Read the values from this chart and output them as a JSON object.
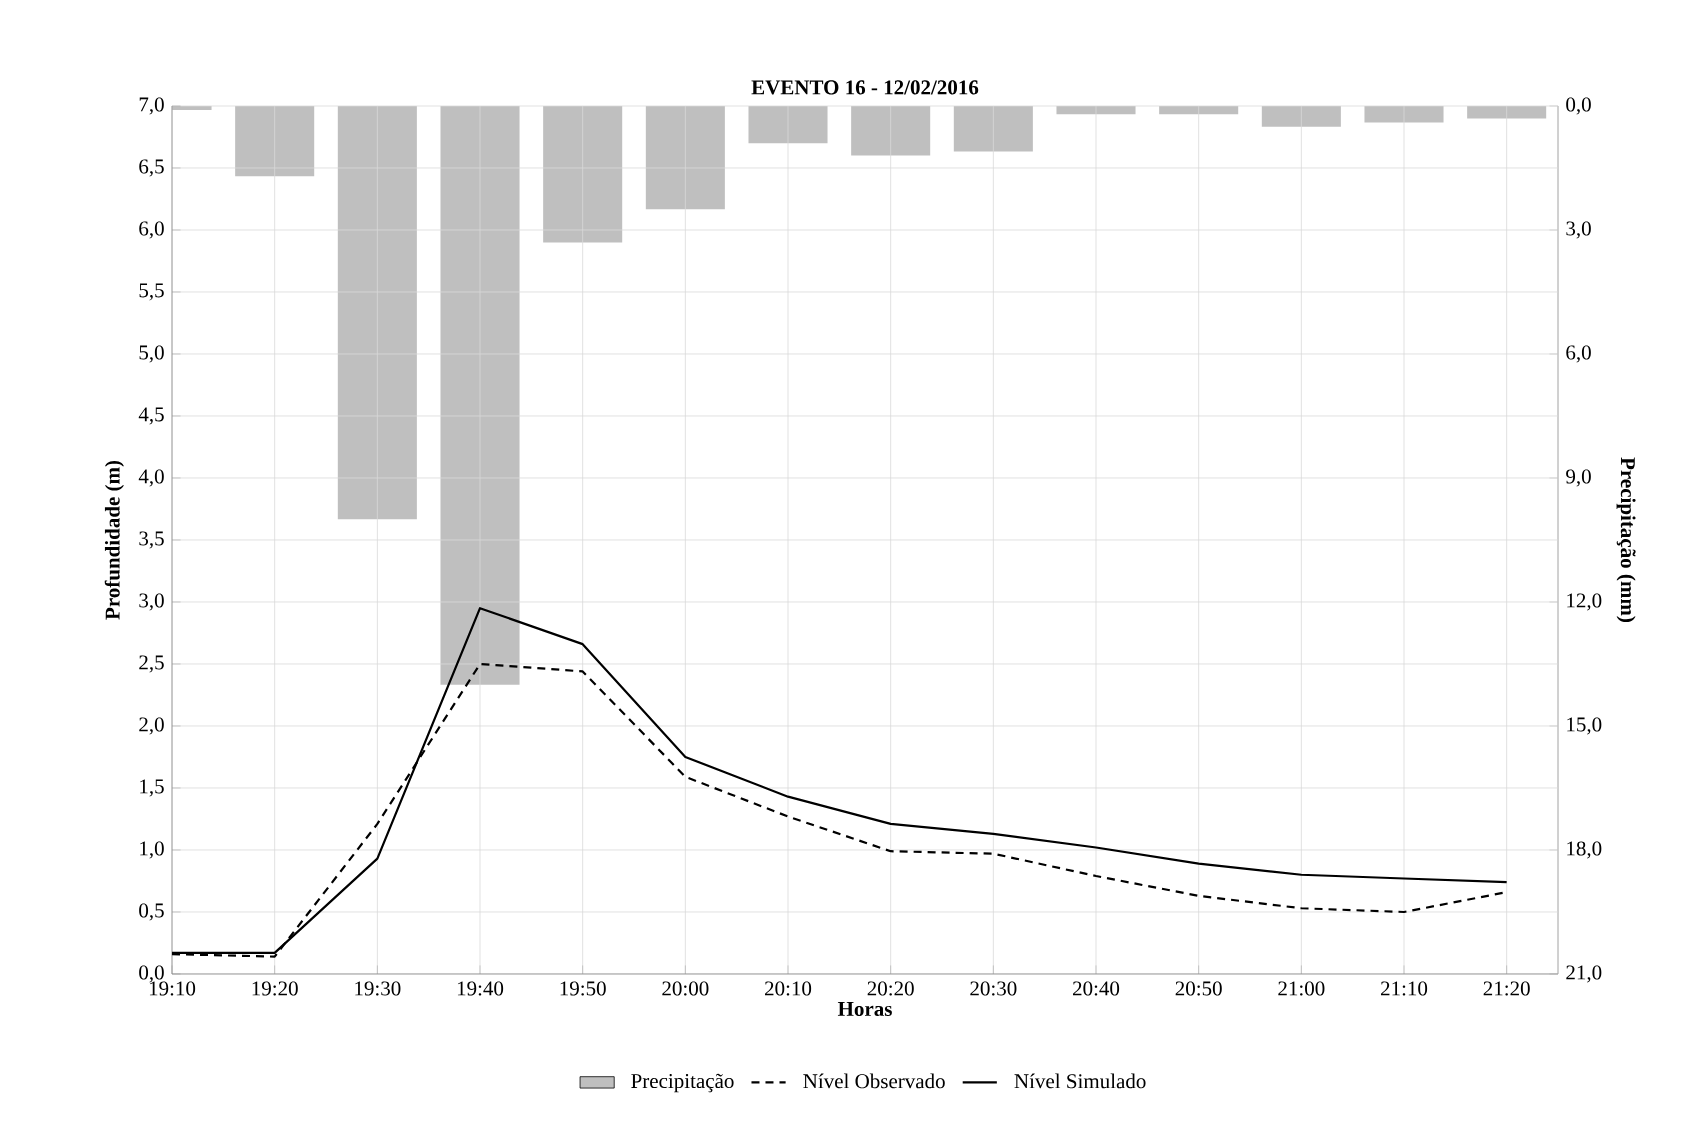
{
  "chart_data": {
    "type": "line",
    "title": "EVENTO 16 - 12/02/2016",
    "xlabel": "Horas",
    "ylabel": "Profundidade (m)",
    "y2label": "Precipitação (mm)",
    "categories": [
      "19:10",
      "19:20",
      "19:30",
      "19:40",
      "19:50",
      "20:00",
      "20:10",
      "20:20",
      "20:30",
      "20:40",
      "20:50",
      "21:00",
      "21:10",
      "21:20"
    ],
    "series": [
      {
        "name": "Precipitação",
        "type": "bar",
        "axis": "y2",
        "color": "#bfbfbf",
        "values": [
          0.1,
          1.7,
          10.0,
          14.0,
          3.3,
          2.5,
          0.9,
          1.2,
          1.1,
          0.2,
          0.2,
          0.5,
          0.4,
          0.3
        ]
      },
      {
        "name": "Nível Observado",
        "line_style": "dashed",
        "color": "#000000",
        "values": [
          0.16,
          0.14,
          1.21,
          2.5,
          2.44,
          1.59,
          1.27,
          0.99,
          0.97,
          0.79,
          0.63,
          0.53,
          0.5,
          0.66
        ]
      },
      {
        "name": "Nível Simulado",
        "line_style": "solid",
        "color": "#000000",
        "values": [
          0.17,
          0.17,
          0.93,
          2.95,
          2.66,
          1.75,
          1.43,
          1.21,
          1.13,
          1.02,
          0.89,
          0.8,
          0.77,
          0.74
        ]
      }
    ],
    "ylim": [
      0,
      7
    ],
    "yticks": [
      {
        "value": 0,
        "label": "0,0"
      },
      {
        "value": 0.5,
        "label": "0,5"
      },
      {
        "value": 1,
        "label": "1,0"
      },
      {
        "value": 1.5,
        "label": "1,5"
      },
      {
        "value": 2,
        "label": "2,0"
      },
      {
        "value": 2.5,
        "label": "2,5"
      },
      {
        "value": 3,
        "label": "3,0"
      },
      {
        "value": 3.5,
        "label": "3,5"
      },
      {
        "value": 4,
        "label": "4,0"
      },
      {
        "value": 4.5,
        "label": "4,5"
      },
      {
        "value": 5,
        "label": "5,0"
      },
      {
        "value": 5.5,
        "label": "5,5"
      },
      {
        "value": 6,
        "label": "6,0"
      },
      {
        "value": 6.5,
        "label": "6,5"
      },
      {
        "value": 7,
        "label": "7,0"
      }
    ],
    "y2lim": [
      21,
      0
    ],
    "y2ticks": [
      {
        "value": 0,
        "label": "0,0"
      },
      {
        "value": 3,
        "label": "3,0"
      },
      {
        "value": 6,
        "label": "6,0"
      },
      {
        "value": 9,
        "label": "9,0"
      },
      {
        "value": 12,
        "label": "12,0"
      },
      {
        "value": 15,
        "label": "15,0"
      },
      {
        "value": 18,
        "label": "18,0"
      },
      {
        "value": 21,
        "label": "21,0"
      }
    ],
    "grid": true,
    "legend": "bottom",
    "marker": "none"
  }
}
